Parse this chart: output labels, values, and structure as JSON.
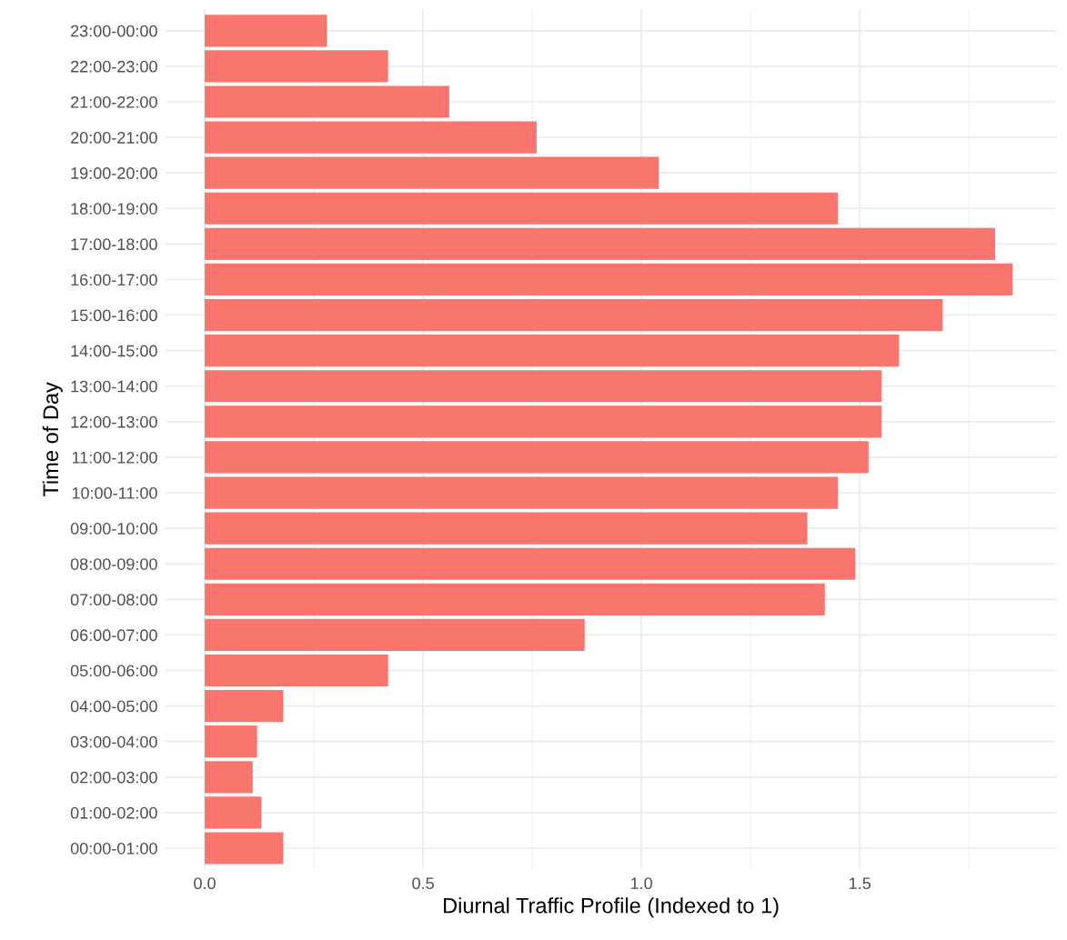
{
  "chart_data": {
    "type": "bar",
    "orientation": "horizontal",
    "xlabel": "Diurnal Traffic Profile (Indexed to 1)",
    "ylabel": "Time of Day",
    "categories": [
      "23:00-00:00",
      "22:00-23:00",
      "21:00-22:00",
      "20:00-21:00",
      "19:00-20:00",
      "18:00-19:00",
      "17:00-18:00",
      "16:00-17:00",
      "15:00-16:00",
      "14:00-15:00",
      "13:00-14:00",
      "12:00-13:00",
      "11:00-12:00",
      "10:00-11:00",
      "09:00-10:00",
      "08:00-09:00",
      "07:00-08:00",
      "06:00-07:00",
      "05:00-06:00",
      "04:00-05:00",
      "03:00-04:00",
      "02:00-03:00",
      "01:00-02:00",
      "00:00-01:00"
    ],
    "values": [
      0.28,
      0.42,
      0.56,
      0.76,
      1.04,
      1.45,
      1.81,
      1.85,
      1.69,
      1.59,
      1.55,
      1.55,
      1.52,
      1.45,
      1.38,
      1.49,
      1.42,
      0.87,
      0.42,
      0.18,
      0.12,
      0.11,
      0.13,
      0.18
    ],
    "color": "#f8766d",
    "xlim": [
      -0.09,
      1.95
    ],
    "xticks": [
      {
        "value": 0,
        "label": "0.0"
      },
      {
        "value": 0.25,
        "label": null
      },
      {
        "value": 0.5,
        "label": "0.5"
      },
      {
        "value": 0.75,
        "label": null
      },
      {
        "value": 1,
        "label": "1.0"
      },
      {
        "value": 1.25,
        "label": null
      },
      {
        "value": 1.5,
        "label": "1.5"
      },
      {
        "value": 1.75,
        "label": null
      }
    ],
    "grid": true
  }
}
